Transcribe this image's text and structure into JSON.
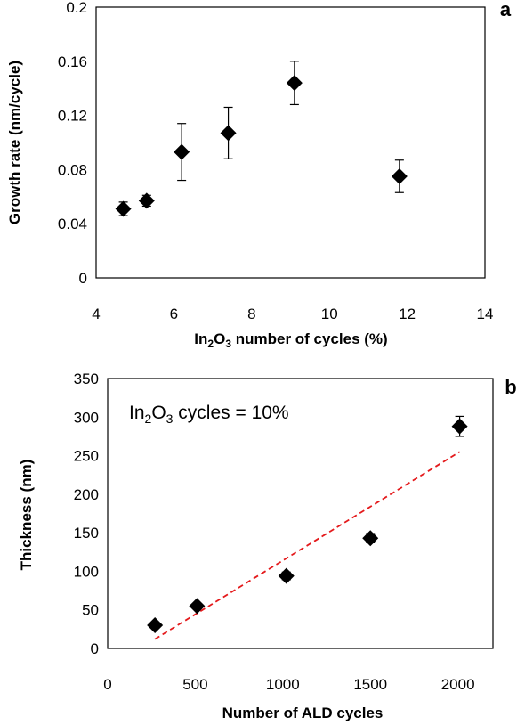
{
  "chart_data": [
    {
      "type": "scatter",
      "panel_label": "a",
      "xlabel": {
        "pre": "In",
        "sub1": "2",
        "mid": "O",
        "sub2": "3",
        "post": " number of cycles (%)"
      },
      "ylabel": "Growth rate (nm/cycle)",
      "xlim": [
        4,
        14
      ],
      "ylim": [
        0,
        0.2
      ],
      "xticks": [
        4,
        6,
        8,
        10,
        12,
        14
      ],
      "yticks": [
        0,
        0.04,
        0.08,
        0.12,
        0.16,
        0.2
      ],
      "xtick_labels": [
        "4",
        "6",
        "8",
        "10",
        "12",
        "14"
      ],
      "ytick_labels": [
        "0",
        "0.04",
        "0.08",
        "0.12",
        "0.16",
        "0.2"
      ],
      "grid": false,
      "marker": "diamond",
      "color": "#000000",
      "points": [
        {
          "x": 4.7,
          "y": 0.051,
          "err_low": 0.005,
          "err_high": 0.005
        },
        {
          "x": 5.3,
          "y": 0.057,
          "err_low": 0.004,
          "err_high": 0.004
        },
        {
          "x": 6.2,
          "y": 0.093,
          "err_low": 0.021,
          "err_high": 0.021
        },
        {
          "x": 7.4,
          "y": 0.107,
          "err_low": 0.019,
          "err_high": 0.019
        },
        {
          "x": 9.1,
          "y": 0.144,
          "err_low": 0.016,
          "err_high": 0.016
        },
        {
          "x": 11.8,
          "y": 0.075,
          "err_low": 0.012,
          "err_high": 0.012
        }
      ]
    },
    {
      "type": "scatter",
      "panel_label": "b",
      "annotation": {
        "pre": "In",
        "sub1": "2",
        "mid": "O",
        "sub2": "3",
        "post": " cycles = 10%"
      },
      "xlabel": "Number of ALD cycles",
      "ylabel": "Thickness  (nm)",
      "xlim": [
        0,
        2200
      ],
      "ylim": [
        0,
        350
      ],
      "xticks": [
        0,
        500,
        1000,
        1500,
        2000
      ],
      "yticks": [
        0,
        50,
        100,
        150,
        200,
        250,
        300,
        350
      ],
      "xtick_labels": [
        "0",
        "500",
        "1000",
        "1500",
        "2000"
      ],
      "ytick_labels": [
        "0",
        "50",
        "100",
        "150",
        "200",
        "250",
        "300",
        "350"
      ],
      "grid": false,
      "marker": "diamond",
      "color": "#000000",
      "points": [
        {
          "x": 270,
          "y": 30,
          "err_low": 3,
          "err_high": 3
        },
        {
          "x": 510,
          "y": 55,
          "err_low": 3,
          "err_high": 3
        },
        {
          "x": 1020,
          "y": 94,
          "err_low": 5,
          "err_high": 5
        },
        {
          "x": 1500,
          "y": 143,
          "err_low": 6,
          "err_high": 6
        },
        {
          "x": 2010,
          "y": 288,
          "err_low": 13,
          "err_high": 13
        }
      ],
      "trendline": {
        "style": "dashed",
        "color": "#e41a1c",
        "x": [
          270,
          2010
        ],
        "y": [
          12,
          255
        ]
      }
    }
  ]
}
